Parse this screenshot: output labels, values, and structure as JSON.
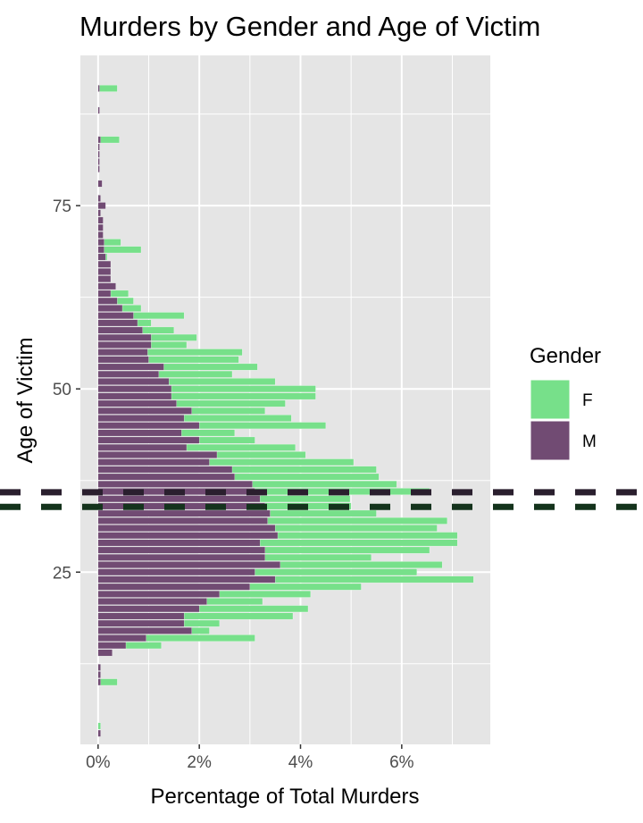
{
  "chart_data": {
    "type": "bar",
    "orientation": "horizontal",
    "stacked": false,
    "title": "Murders by Gender and Age of Victim",
    "xlabel": "Percentage of Total Murders",
    "ylabel": "Age of Victim",
    "xlim": [
      -0.35,
      7.75
    ],
    "ylim": [
      1.5,
      95.5
    ],
    "x_ticks": [
      0,
      2,
      4,
      6
    ],
    "x_tick_labels": [
      "0%",
      "2%",
      "4%",
      "6%"
    ],
    "y_ticks": [
      25,
      50,
      75
    ],
    "y_tick_labels": [
      "25",
      "50",
      "75"
    ],
    "grid": true,
    "legend": {
      "title": "Gender",
      "position": "right"
    },
    "colors": {
      "F": "#77e08a",
      "M": "#714b73",
      "panel": "#e5e5e5",
      "grid": "#ffffff"
    },
    "reference_lines": [
      {
        "axis": "y",
        "value": 35.9,
        "color": "#2a1f2e",
        "style": "dashed"
      },
      {
        "axis": "y",
        "value": 33.9,
        "color": "#14331c",
        "style": "dashed"
      }
    ],
    "series": [
      {
        "name": "F",
        "color": "#77e08a",
        "points": [
          [
            4,
            0.05
          ],
          [
            10,
            0.38
          ],
          [
            11,
            0.05
          ],
          [
            12,
            0.05
          ],
          [
            14,
            0.27
          ],
          [
            15,
            1.25
          ],
          [
            16,
            3.1
          ],
          [
            17,
            2.2
          ],
          [
            18,
            2.4
          ],
          [
            19,
            3.85
          ],
          [
            20,
            4.15
          ],
          [
            21,
            3.25
          ],
          [
            22,
            4.2
          ],
          [
            23,
            5.2
          ],
          [
            24,
            7.42
          ],
          [
            25,
            6.3
          ],
          [
            26,
            6.8
          ],
          [
            27,
            5.4
          ],
          [
            28,
            6.55
          ],
          [
            29,
            7.1
          ],
          [
            30,
            7.1
          ],
          [
            31,
            6.7
          ],
          [
            32,
            6.9
          ],
          [
            33,
            5.5
          ],
          [
            34,
            5.0
          ],
          [
            35,
            4.98
          ],
          [
            36,
            6.55
          ],
          [
            37,
            5.9
          ],
          [
            38,
            5.55
          ],
          [
            39,
            5.5
          ],
          [
            40,
            5.05
          ],
          [
            41,
            4.1
          ],
          [
            42,
            3.9
          ],
          [
            43,
            3.1
          ],
          [
            44,
            2.7
          ],
          [
            45,
            4.5
          ],
          [
            46,
            3.82
          ],
          [
            47,
            3.3
          ],
          [
            48,
            3.7
          ],
          [
            49,
            4.3
          ],
          [
            50,
            4.3
          ],
          [
            51,
            3.5
          ],
          [
            52,
            2.65
          ],
          [
            53,
            3.15
          ],
          [
            54,
            2.78
          ],
          [
            55,
            2.85
          ],
          [
            56,
            1.75
          ],
          [
            57,
            1.95
          ],
          [
            58,
            1.5
          ],
          [
            59,
            1.05
          ],
          [
            60,
            1.7
          ],
          [
            61,
            0.85
          ],
          [
            62,
            0.7
          ],
          [
            63,
            0.6
          ],
          [
            64,
            0.35
          ],
          [
            65,
            0.25
          ],
          [
            66,
            0.25
          ],
          [
            67,
            0.22
          ],
          [
            68,
            0.18
          ],
          [
            69,
            0.85
          ],
          [
            70,
            0.45
          ],
          [
            71,
            0.08
          ],
          [
            72,
            0.08
          ],
          [
            73,
            0.05
          ],
          [
            74,
            0.05
          ],
          [
            75,
            0.12
          ],
          [
            76,
            0.05
          ],
          [
            78,
            0.05
          ],
          [
            80,
            0.03
          ],
          [
            81,
            0.03
          ],
          [
            82,
            0.03
          ],
          [
            83,
            0.03
          ],
          [
            84,
            0.42
          ],
          [
            88,
            0.03
          ],
          [
            91,
            0.38
          ]
        ]
      },
      {
        "name": "M",
        "color": "#714b73",
        "points": [
          [
            3,
            0.05
          ],
          [
            10,
            0.05
          ],
          [
            11,
            0.05
          ],
          [
            12,
            0.05
          ],
          [
            14,
            0.28
          ],
          [
            15,
            0.55
          ],
          [
            16,
            0.95
          ],
          [
            17,
            1.85
          ],
          [
            18,
            1.7
          ],
          [
            19,
            1.7
          ],
          [
            20,
            2.0
          ],
          [
            21,
            2.15
          ],
          [
            22,
            2.4
          ],
          [
            23,
            3.0
          ],
          [
            24,
            3.5
          ],
          [
            25,
            3.1
          ],
          [
            26,
            3.6
          ],
          [
            27,
            3.3
          ],
          [
            28,
            3.3
          ],
          [
            29,
            3.2
          ],
          [
            30,
            3.55
          ],
          [
            31,
            3.5
          ],
          [
            32,
            3.35
          ],
          [
            33,
            3.4
          ],
          [
            34,
            3.3
          ],
          [
            35,
            3.2
          ],
          [
            36,
            3.1
          ],
          [
            37,
            3.05
          ],
          [
            38,
            2.7
          ],
          [
            39,
            2.65
          ],
          [
            40,
            2.2
          ],
          [
            41,
            2.35
          ],
          [
            42,
            1.75
          ],
          [
            43,
            2.0
          ],
          [
            44,
            1.65
          ],
          [
            45,
            2.0
          ],
          [
            46,
            1.7
          ],
          [
            47,
            1.85
          ],
          [
            48,
            1.55
          ],
          [
            49,
            1.45
          ],
          [
            50,
            1.45
          ],
          [
            51,
            1.4
          ],
          [
            52,
            1.2
          ],
          [
            53,
            1.3
          ],
          [
            54,
            1.0
          ],
          [
            55,
            0.98
          ],
          [
            56,
            1.05
          ],
          [
            57,
            1.05
          ],
          [
            58,
            0.88
          ],
          [
            59,
            0.78
          ],
          [
            60,
            0.7
          ],
          [
            61,
            0.48
          ],
          [
            62,
            0.38
          ],
          [
            63,
            0.25
          ],
          [
            64,
            0.35
          ],
          [
            65,
            0.25
          ],
          [
            66,
            0.25
          ],
          [
            67,
            0.25
          ],
          [
            68,
            0.15
          ],
          [
            69,
            0.12
          ],
          [
            70,
            0.12
          ],
          [
            71,
            0.1
          ],
          [
            72,
            0.1
          ],
          [
            73,
            0.1
          ],
          [
            74,
            0.05
          ],
          [
            75,
            0.15
          ],
          [
            76,
            0.05
          ],
          [
            78,
            0.08
          ],
          [
            80,
            0.03
          ],
          [
            81,
            0.03
          ],
          [
            82,
            0.03
          ],
          [
            83,
            0.03
          ],
          [
            84,
            0.05
          ],
          [
            88,
            0.03
          ],
          [
            91,
            0.03
          ]
        ]
      }
    ]
  }
}
